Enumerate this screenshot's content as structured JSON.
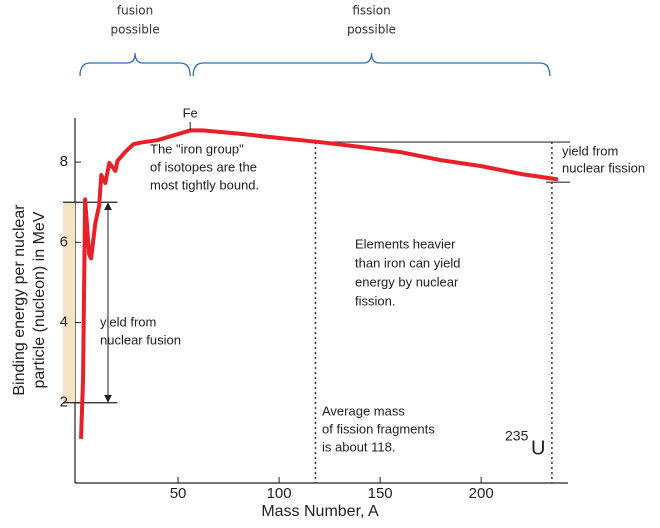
{
  "chart_data": {
    "type": "line",
    "xlabel": "Mass Number, A",
    "ylabel": [
      "Binding energy per nuclear",
      "particle (nucleon) in MeV"
    ],
    "x": [
      2,
      3,
      4,
      6,
      7,
      9,
      11,
      12,
      14,
      16,
      19,
      20,
      24,
      28,
      32,
      40,
      50,
      56,
      62,
      80,
      100,
      120,
      140,
      160,
      180,
      200,
      220,
      238
    ],
    "values": [
      1.1,
      2.6,
      7.07,
      5.7,
      5.6,
      6.46,
      6.93,
      7.68,
      7.48,
      7.98,
      7.78,
      8.03,
      8.26,
      8.45,
      8.49,
      8.55,
      8.7,
      8.79,
      8.79,
      8.71,
      8.6,
      8.5,
      8.38,
      8.25,
      8.05,
      7.9,
      7.7,
      7.57
    ],
    "color": "#e8202a",
    "xlim": [
      0,
      240
    ],
    "ylim": [
      0,
      9
    ],
    "xticks": [
      50,
      100,
      150,
      200
    ],
    "yticks": [
      2,
      4,
      6,
      8
    ],
    "iron": {
      "label": "Fe",
      "mass": 56
    },
    "regions": [
      {
        "lines": [
          "fusion",
          "possible"
        ],
        "from": 0,
        "to": 56
      },
      {
        "lines": [
          "fission",
          "possible"
        ],
        "from": 56,
        "to": 234
      }
    ],
    "fusion_yield": {
      "lines": [
        "yield from",
        "nuclear fusion"
      ],
      "from": 2,
      "to": 7
    },
    "fission_yield": {
      "lines": [
        "yield from",
        "nuclear fission"
      ],
      "from": 7.5,
      "to": 8.5
    },
    "fragment_mass": 118,
    "uranium": {
      "mass": 235,
      "symbol": "U"
    },
    "notes": [
      {
        "lines": [
          "The \"iron group\"",
          "of isotopes are the",
          "most tightly bound."
        ]
      },
      {
        "lines": [
          "Elements heavier",
          "than iron can yield",
          "energy by nuclear",
          "fission."
        ]
      },
      {
        "lines": [
          "Average mass",
          "of fission fragments",
          "is about 118."
        ]
      }
    ]
  }
}
